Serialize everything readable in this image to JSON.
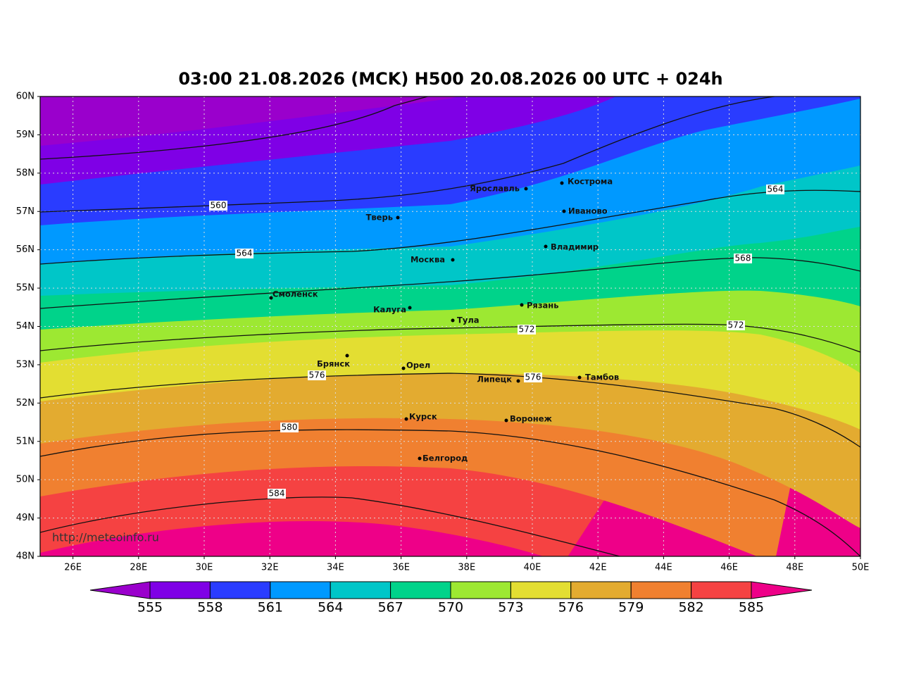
{
  "title": "03:00 21.08.2026 (MCK) H500  20.08.2026 00 UTC + 024h",
  "source": "http://meteoinfo.ru",
  "lon_ticks": [
    {
      "value": 26,
      "label": "26E"
    },
    {
      "value": 28,
      "label": "28E"
    },
    {
      "value": 30,
      "label": "30E"
    },
    {
      "value": 32,
      "label": "32E"
    },
    {
      "value": 34,
      "label": "34E"
    },
    {
      "value": 36,
      "label": "36E"
    },
    {
      "value": 38,
      "label": "38E"
    },
    {
      "value": 40,
      "label": "40E"
    },
    {
      "value": 42,
      "label": "42E"
    },
    {
      "value": 44,
      "label": "44E"
    },
    {
      "value": 46,
      "label": "46E"
    },
    {
      "value": 48,
      "label": "48E"
    },
    {
      "value": 50,
      "label": "50E"
    }
  ],
  "lat_ticks": [
    {
      "value": 60,
      "label": "60N"
    },
    {
      "value": 59,
      "label": "59N"
    },
    {
      "value": 58,
      "label": "58N"
    },
    {
      "value": 57,
      "label": "57N"
    },
    {
      "value": 56,
      "label": "56N"
    },
    {
      "value": 55,
      "label": "55N"
    },
    {
      "value": 54,
      "label": "54N"
    },
    {
      "value": 53,
      "label": "53N"
    },
    {
      "value": 52,
      "label": "52N"
    },
    {
      "value": 51,
      "label": "51N"
    },
    {
      "value": 50,
      "label": "50N"
    },
    {
      "value": 49,
      "label": "49N"
    },
    {
      "value": 48,
      "label": "48N"
    }
  ],
  "cities": [
    "Кострома",
    "Ярославль",
    "Иваново",
    "Тверь",
    "Владимир",
    "Москва",
    "Смоленск",
    "Рязань",
    "Калуга",
    "Тула",
    "Брянск",
    "Орел",
    "Липецк",
    "Тамбов",
    "Курск",
    "Воронеж",
    "Белгород"
  ],
  "contour_labels": [
    560,
    564,
    564,
    568,
    572,
    572,
    576,
    576,
    580,
    584
  ],
  "colorbar": {
    "ticks": [
      555,
      558,
      561,
      564,
      567,
      570,
      573,
      576,
      579,
      582,
      585
    ],
    "colors": [
      "#9a00cc",
      "#7f00e6",
      "#2a3cff",
      "#0099ff",
      "#00c6c8",
      "#00d38a",
      "#9de832",
      "#e3de32",
      "#e3ab30",
      "#f08030",
      "#f54242",
      "#ee0088"
    ]
  }
}
